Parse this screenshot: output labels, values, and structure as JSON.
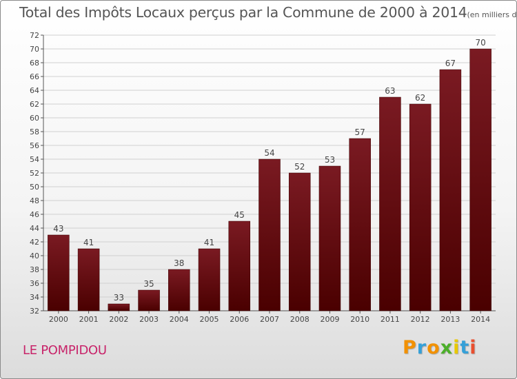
{
  "chart_data": {
    "type": "bar",
    "title": "Total des Impôts Locaux perçus par la Commune de 2000 à 2014",
    "title_unit": "(en milliers d'€)",
    "categories": [
      "2000",
      "2001",
      "2002",
      "2003",
      "2004",
      "2005",
      "2006",
      "2007",
      "2008",
      "2009",
      "2010",
      "2011",
      "2012",
      "2013",
      "2014"
    ],
    "values": [
      43,
      41,
      33,
      35,
      38,
      41,
      45,
      54,
      52,
      53,
      57,
      63,
      62,
      67,
      70
    ],
    "data_labels": [
      "43",
      "41",
      "33",
      "35",
      "38",
      "41",
      "45",
      "54",
      "52",
      "53",
      "57",
      "63",
      "62",
      "67",
      "70"
    ],
    "ylim": [
      32,
      72
    ],
    "yticks": [
      "32",
      "34",
      "36",
      "38",
      "40",
      "42",
      "44",
      "46",
      "48",
      "50",
      "52",
      "54",
      "56",
      "58",
      "60",
      "62",
      "64",
      "66",
      "68",
      "70",
      "72"
    ],
    "grid": true,
    "xlabel": "",
    "ylabel": "",
    "bar_color": "#7a1a22",
    "bar_color_dark": "#4a0000"
  },
  "commune": "LE POMPIDOU",
  "brand": {
    "letters": [
      "P",
      "r",
      "o",
      "x",
      "i",
      "t",
      "i"
    ],
    "colors": [
      "#f29100",
      "#35a0d8",
      "#f29100",
      "#4caf2a",
      "#e8c800",
      "#35a0d8",
      "#e94f2f"
    ]
  }
}
